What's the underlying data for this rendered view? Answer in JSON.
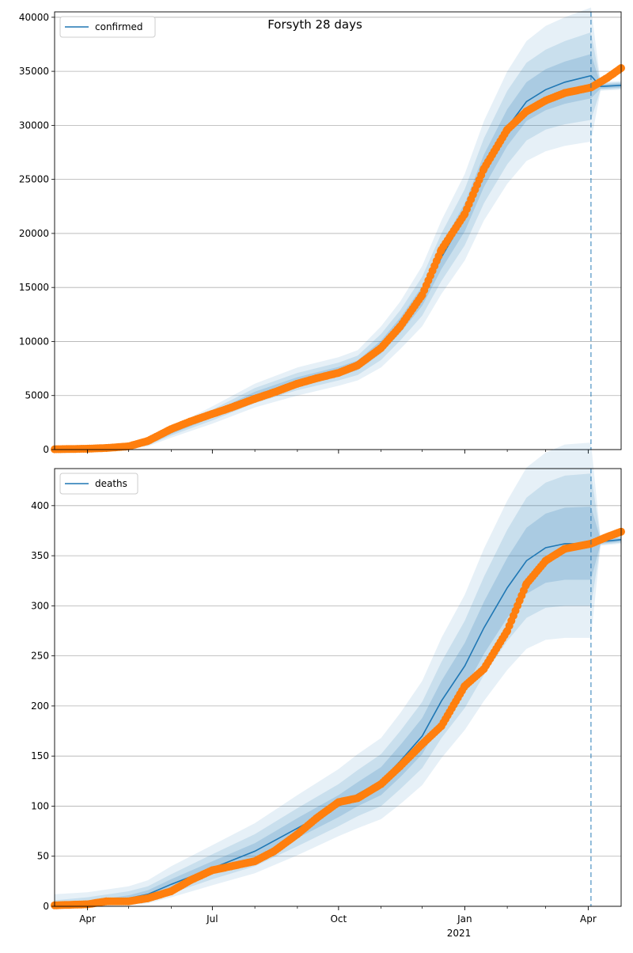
{
  "figure": {
    "title": "Forsyth 28 days"
  },
  "colors": {
    "model_line": "#1f77b4",
    "observed_points": "#ff7f0e",
    "band": "#1f77b4",
    "grid": "#b0b0b0",
    "forecast_marker": "#1f77b4"
  },
  "x_axis": {
    "tick_labels": [
      "Apr",
      "Jul",
      "Oct",
      "Jan",
      "Apr"
    ],
    "tick_dates": [
      "2020-04-01",
      "2020-07-01",
      "2020-10-01",
      "2021-01-01",
      "2021-04-01"
    ],
    "year_label": "2021",
    "range": [
      "2020-03-08",
      "2021-04-25"
    ],
    "forecast_start": "2021-04-03"
  },
  "chart_data": [
    {
      "type": "line",
      "name": "confirmed",
      "legend": "confirmed",
      "legend_position": "top-left",
      "grid": true,
      "ylim": [
        0,
        40500
      ],
      "yticks": [
        0,
        5000,
        10000,
        15000,
        20000,
        25000,
        30000,
        35000,
        40000
      ],
      "ytick_labels": [
        "0",
        "5000",
        "10000",
        "15000",
        "20000",
        "25000",
        "30000",
        "35000",
        "40000"
      ],
      "model": {
        "x": [
          "2020-03-08",
          "2020-04-01",
          "2020-05-01",
          "2020-05-15",
          "2020-06-01",
          "2020-07-01",
          "2020-08-01",
          "2020-09-01",
          "2020-10-01",
          "2020-10-15",
          "2020-11-01",
          "2020-11-15",
          "2020-12-01",
          "2020-12-15",
          "2021-01-01",
          "2021-01-15",
          "2021-02-01",
          "2021-02-15",
          "2021-03-01",
          "2021-03-15",
          "2021-04-03",
          "2021-04-10",
          "2021-04-25"
        ],
        "y": [
          30,
          60,
          200,
          500,
          1600,
          3200,
          5000,
          6300,
          7200,
          7800,
          9500,
          11500,
          14200,
          17800,
          21500,
          25800,
          29800,
          32200,
          33300,
          34000,
          34600,
          33600,
          33700
        ],
        "band_inner": [
          [
            30,
            30
          ],
          [
            60,
            60
          ],
          [
            180,
            220
          ],
          [
            440,
            560
          ],
          [
            1450,
            1750
          ],
          [
            2950,
            3450
          ],
          [
            4650,
            5350
          ],
          [
            5900,
            6700
          ],
          [
            6800,
            7650
          ],
          [
            7350,
            8250
          ],
          [
            8900,
            10100
          ],
          [
            10800,
            12200
          ],
          [
            13300,
            15100
          ],
          [
            16700,
            18900
          ],
          [
            20200,
            22800
          ],
          [
            24300,
            27300
          ],
          [
            28100,
            31500
          ],
          [
            30400,
            34000
          ],
          [
            31400,
            35200
          ],
          [
            32000,
            35900
          ],
          [
            32500,
            36600
          ],
          [
            33400,
            33800
          ],
          [
            33500,
            33900
          ]
        ],
        "band_mid": [
          [
            20,
            40
          ],
          [
            40,
            80
          ],
          [
            150,
            260
          ],
          [
            380,
            640
          ],
          [
            1300,
            1900
          ],
          [
            2700,
            3700
          ],
          [
            4300,
            5700
          ],
          [
            5500,
            7100
          ],
          [
            6400,
            8050
          ],
          [
            6900,
            8700
          ],
          [
            8300,
            10700
          ],
          [
            10100,
            12900
          ],
          [
            12400,
            16000
          ],
          [
            15600,
            20000
          ],
          [
            18900,
            24100
          ],
          [
            22800,
            28800
          ],
          [
            26400,
            33200
          ],
          [
            28600,
            35800
          ],
          [
            29600,
            37000
          ],
          [
            30100,
            37800
          ],
          [
            30500,
            38600
          ],
          [
            33300,
            33900
          ],
          [
            33400,
            34000
          ]
        ],
        "band_outer": [
          [
            10,
            60
          ],
          [
            20,
            110
          ],
          [
            110,
            320
          ],
          [
            300,
            760
          ],
          [
            1100,
            2100
          ],
          [
            2400,
            4000
          ],
          [
            3900,
            6100
          ],
          [
            5000,
            7600
          ],
          [
            5900,
            8550
          ],
          [
            6400,
            9200
          ],
          [
            7600,
            11400
          ],
          [
            9300,
            13700
          ],
          [
            11400,
            17000
          ],
          [
            14400,
            21200
          ],
          [
            17500,
            25500
          ],
          [
            21200,
            30400
          ],
          [
            24600,
            35000
          ],
          [
            26700,
            37800
          ],
          [
            27600,
            39200
          ],
          [
            28100,
            40000
          ],
          [
            28500,
            40900
          ],
          [
            33200,
            34000
          ],
          [
            33300,
            34100
          ]
        ]
      },
      "observed": {
        "x": [
          "2020-03-08",
          "2020-04-01",
          "2020-04-15",
          "2020-05-01",
          "2020-05-15",
          "2020-06-01",
          "2020-06-15",
          "2020-07-01",
          "2020-07-15",
          "2020-08-01",
          "2020-08-15",
          "2020-09-01",
          "2020-09-15",
          "2020-10-01",
          "2020-10-15",
          "2020-11-01",
          "2020-11-15",
          "2020-12-01",
          "2020-12-15",
          "2021-01-01",
          "2021-01-15",
          "2021-02-01",
          "2021-02-15",
          "2021-03-01",
          "2021-03-15",
          "2021-04-03",
          "2021-04-15",
          "2021-04-25"
        ],
        "y": [
          30,
          80,
          150,
          300,
          800,
          1900,
          2600,
          3300,
          3900,
          4700,
          5300,
          6100,
          6600,
          7100,
          7800,
          9400,
          11400,
          14300,
          18500,
          21800,
          26000,
          29600,
          31300,
          32300,
          33000,
          33500,
          34400,
          35300
        ]
      }
    },
    {
      "type": "line",
      "name": "deaths",
      "legend": "deaths",
      "legend_position": "top-left",
      "grid": true,
      "ylim": [
        0,
        437
      ],
      "yticks": [
        0,
        50,
        100,
        150,
        200,
        250,
        300,
        350,
        400
      ],
      "ytick_labels": [
        "0",
        "50",
        "100",
        "150",
        "200",
        "250",
        "300",
        "350",
        "400"
      ],
      "model": {
        "x": [
          "2020-03-08",
          "2020-04-01",
          "2020-05-01",
          "2020-05-15",
          "2020-06-01",
          "2020-07-01",
          "2020-08-01",
          "2020-09-01",
          "2020-10-01",
          "2020-10-15",
          "2020-11-01",
          "2020-11-15",
          "2020-12-01",
          "2020-12-15",
          "2021-01-01",
          "2021-01-15",
          "2021-02-01",
          "2021-02-15",
          "2021-03-01",
          "2021-03-15",
          "2021-04-03",
          "2021-04-10",
          "2021-04-25"
        ],
        "y": [
          1,
          3,
          8,
          12,
          22,
          38,
          55,
          78,
          100,
          112,
          125,
          145,
          170,
          205,
          240,
          278,
          318,
          345,
          358,
          362,
          362,
          364,
          366
        ],
        "band_inner": [
          [
            0,
            3
          ],
          [
            1,
            5
          ],
          [
            6,
            11
          ],
          [
            9,
            16
          ],
          [
            17,
            27
          ],
          [
            32,
            45
          ],
          [
            47,
            63
          ],
          [
            68,
            88
          ],
          [
            89,
            111
          ],
          [
            100,
            124
          ],
          [
            111,
            139
          ],
          [
            129,
            161
          ],
          [
            152,
            188
          ],
          [
            185,
            225
          ],
          [
            217,
            263
          ],
          [
            252,
            304
          ],
          [
            288,
            348
          ],
          [
            312,
            378
          ],
          [
            323,
            392
          ],
          [
            326,
            398
          ],
          [
            326,
            399
          ],
          [
            362,
            366
          ],
          [
            364,
            368
          ]
        ],
        "band_mid": [
          [
            0,
            6
          ],
          [
            0,
            9
          ],
          [
            4,
            15
          ],
          [
            7,
            20
          ],
          [
            13,
            32
          ],
          [
            27,
            52
          ],
          [
            40,
            72
          ],
          [
            60,
            98
          ],
          [
            80,
            122
          ],
          [
            90,
            136
          ],
          [
            100,
            152
          ],
          [
            117,
            175
          ],
          [
            138,
            204
          ],
          [
            168,
            244
          ],
          [
            198,
            285
          ],
          [
            231,
            329
          ],
          [
            265,
            376
          ],
          [
            288,
            408
          ],
          [
            298,
            423
          ],
          [
            300,
            430
          ],
          [
            300,
            432
          ],
          [
            361,
            367
          ],
          [
            363,
            369
          ]
        ],
        "band_outer": [
          [
            0,
            12
          ],
          [
            0,
            14
          ],
          [
            1,
            20
          ],
          [
            3,
            26
          ],
          [
            9,
            40
          ],
          [
            21,
            61
          ],
          [
            33,
            83
          ],
          [
            51,
            111
          ],
          [
            70,
            137
          ],
          [
            78,
            152
          ],
          [
            87,
            168
          ],
          [
            102,
            193
          ],
          [
            121,
            225
          ],
          [
            148,
            268
          ],
          [
            176,
            311
          ],
          [
            205,
            357
          ],
          [
            236,
            405
          ],
          [
            257,
            438
          ],
          [
            266,
            453
          ],
          [
            268,
            461
          ],
          [
            268,
            463
          ],
          [
            360,
            368
          ],
          [
            362,
            370
          ]
        ]
      },
      "observed": {
        "x": [
          "2020-03-08",
          "2020-04-01",
          "2020-04-15",
          "2020-05-01",
          "2020-05-15",
          "2020-06-01",
          "2020-06-15",
          "2020-07-01",
          "2020-07-15",
          "2020-08-01",
          "2020-08-15",
          "2020-09-01",
          "2020-09-15",
          "2020-10-01",
          "2020-10-15",
          "2020-11-01",
          "2020-11-15",
          "2020-12-01",
          "2020-12-15",
          "2021-01-01",
          "2021-01-15",
          "2021-02-01",
          "2021-02-15",
          "2021-03-01",
          "2021-03-15",
          "2021-04-03",
          "2021-04-15",
          "2021-04-25"
        ],
        "y": [
          1,
          2,
          5,
          5,
          8,
          15,
          26,
          36,
          40,
          45,
          55,
          72,
          88,
          104,
          108,
          122,
          140,
          162,
          180,
          220,
          237,
          275,
          322,
          345,
          357,
          362,
          369,
          374
        ]
      }
    }
  ]
}
